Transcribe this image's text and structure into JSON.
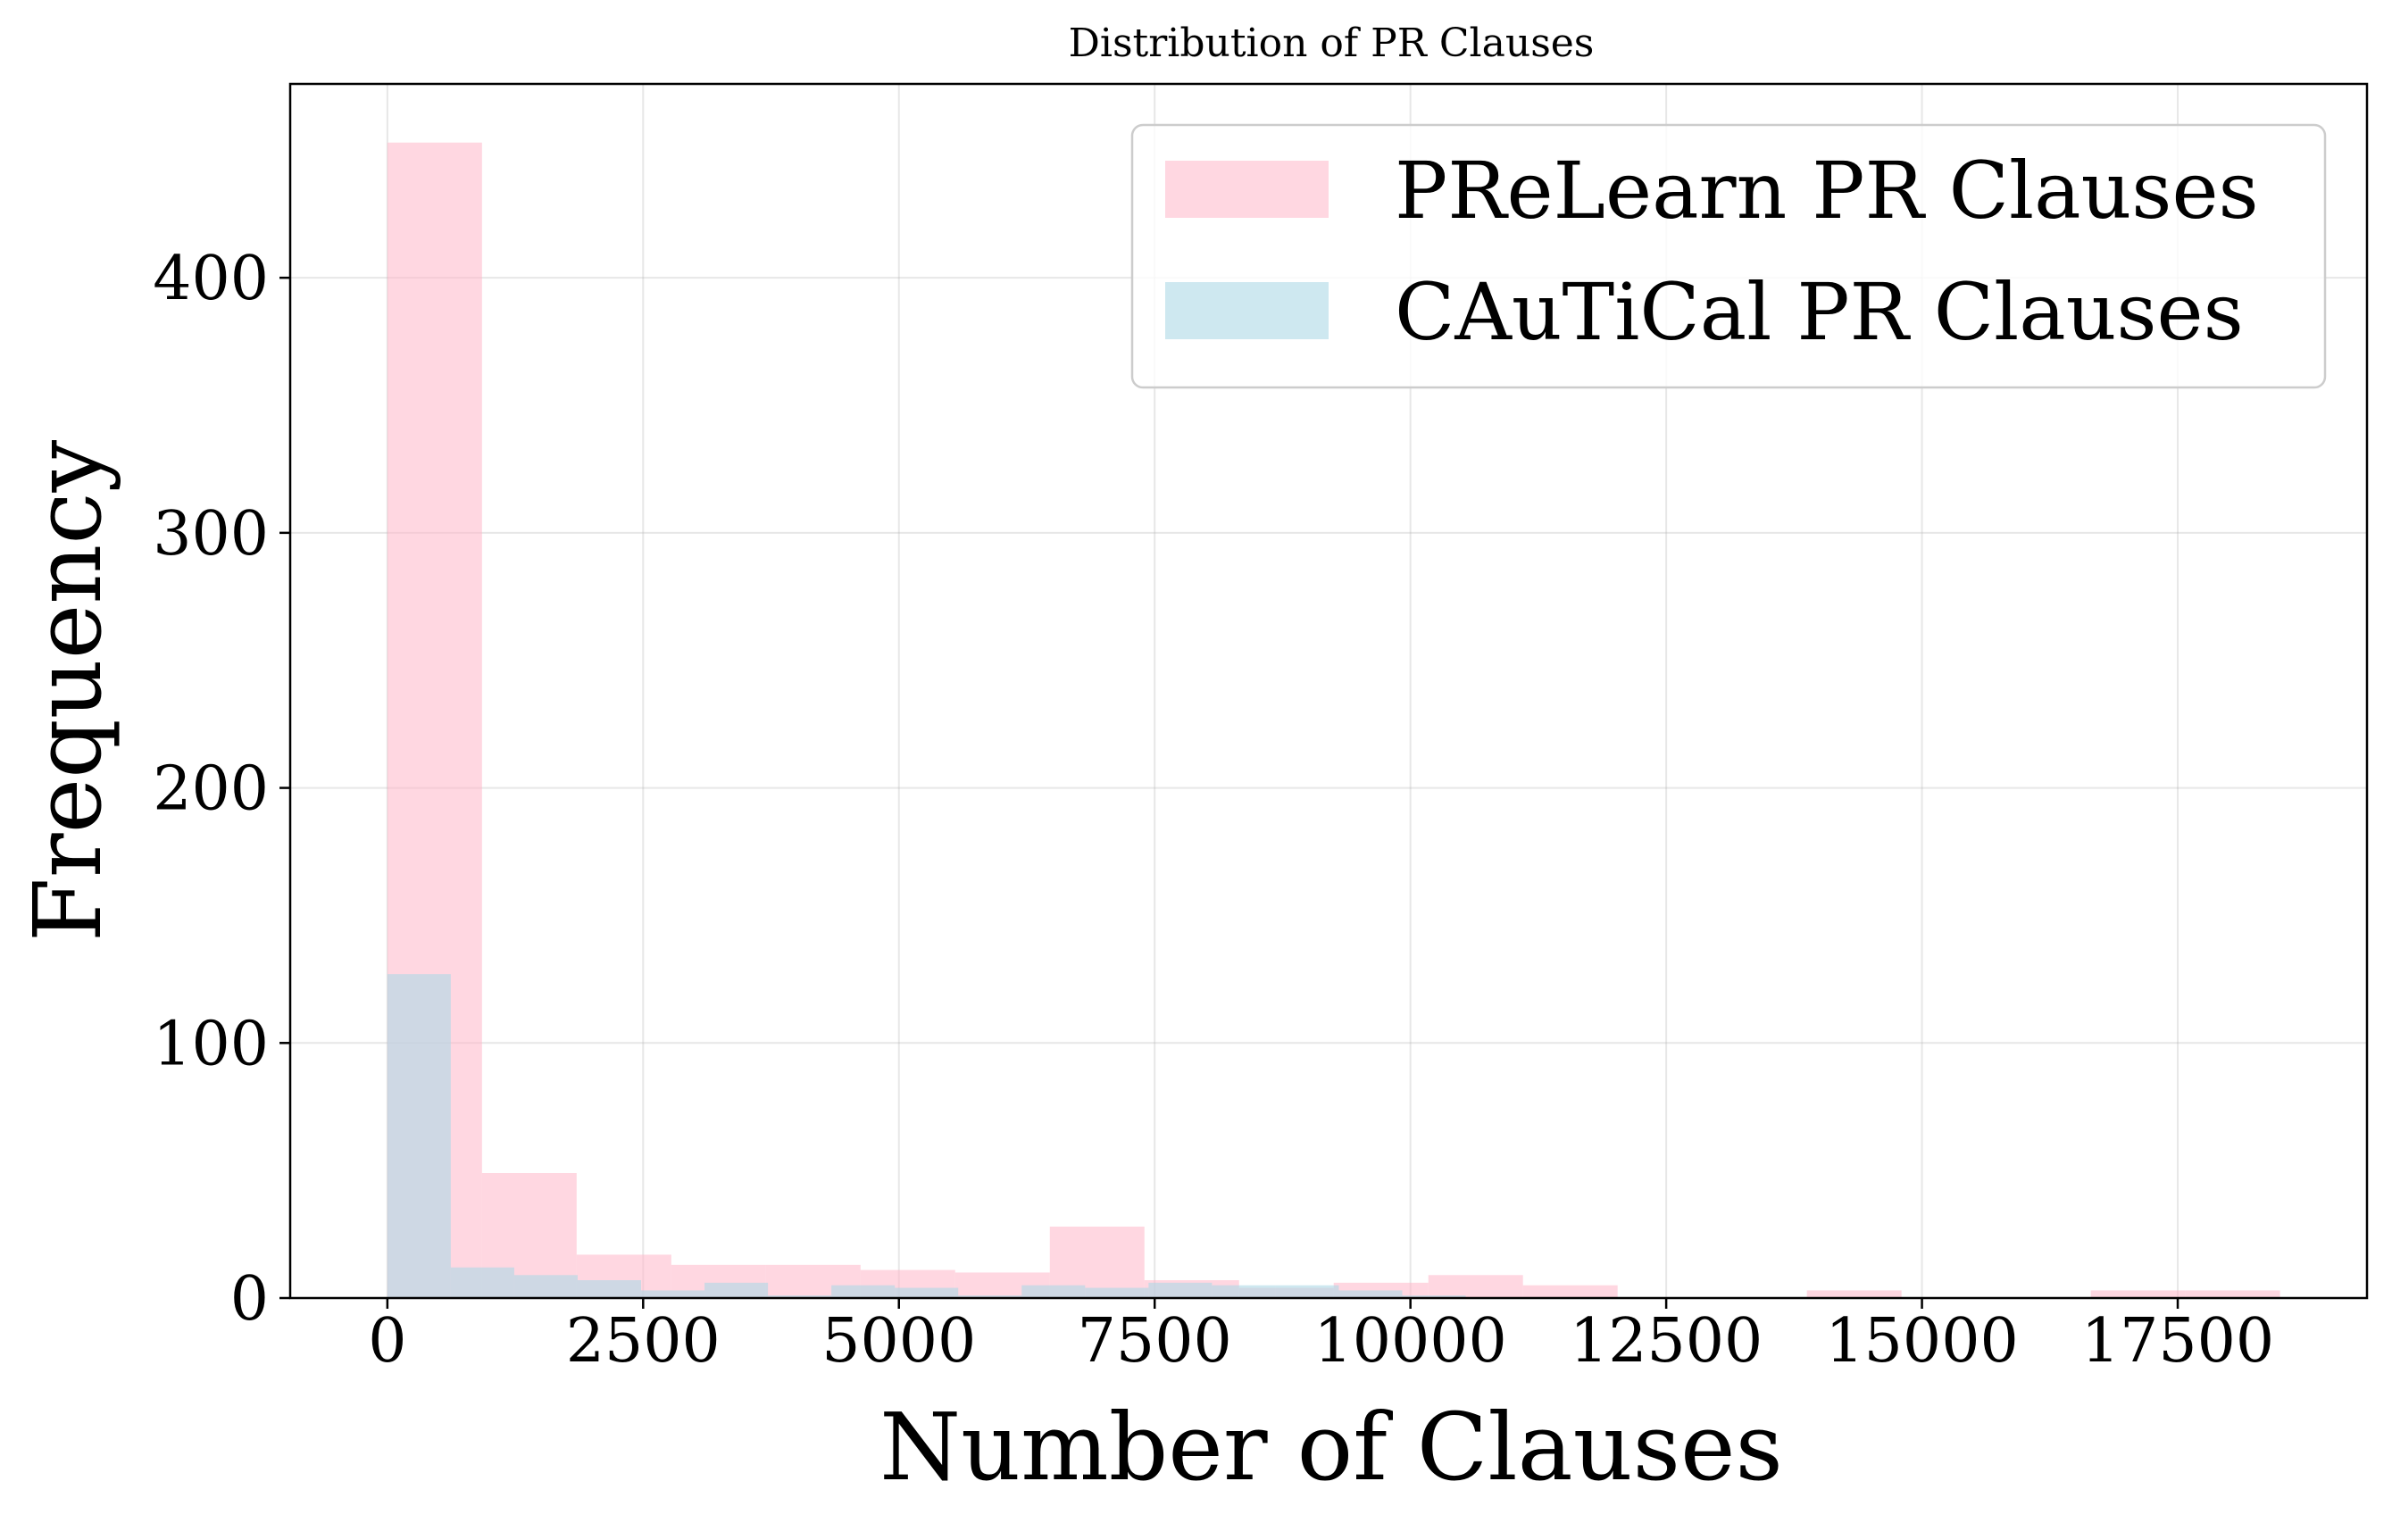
{
  "chart_data": {
    "type": "bar",
    "title": "Distribution of PR Clauses",
    "xlabel": "Number of Clauses",
    "ylabel": "Frequency",
    "xlim": [
      -950,
      19350
    ],
    "ylim": [
      0,
      476
    ],
    "x_ticks": [
      0,
      2500,
      5000,
      7500,
      10000,
      12500,
      15000,
      17500
    ],
    "x_tick_labels": [
      "0",
      "2500",
      "5000",
      "7500",
      "10000",
      "12500",
      "15000",
      "17500"
    ],
    "y_ticks": [
      0,
      100,
      200,
      300,
      400
    ],
    "y_tick_labels": [
      "0",
      "100",
      "200",
      "300",
      "400"
    ],
    "grid": true,
    "legend_position": "upper right",
    "series": [
      {
        "name": "PReLearn PR Clauses",
        "color": "#ffb6c8",
        "opacity": 0.55,
        "bin_edges": [
          0,
          925,
          1850,
          2775,
          3700,
          4625,
          5550,
          6475,
          7400,
          8325,
          9250,
          10175,
          11100,
          12025,
          12950,
          13875,
          14800,
          15725,
          16650,
          17575,
          18500
        ],
        "counts": [
          453,
          49,
          17,
          13,
          13,
          11,
          10,
          28,
          7,
          4,
          6,
          9,
          5,
          0,
          0,
          3,
          0,
          0,
          3,
          3
        ]
      },
      {
        "name": "CAuTiCal PR Clauses",
        "color": "#add8e6",
        "opacity": 0.6,
        "bin_edges": [
          0,
          620,
          1240,
          1860,
          2480,
          3100,
          3720,
          4340,
          4960,
          5580,
          6200,
          6820,
          7440,
          8060,
          8680,
          9300,
          9920,
          10540
        ],
        "counts": [
          127,
          12,
          9,
          7,
          3,
          6,
          1,
          5,
          4,
          1,
          5,
          4,
          6,
          5,
          5,
          3,
          1
        ]
      }
    ]
  }
}
